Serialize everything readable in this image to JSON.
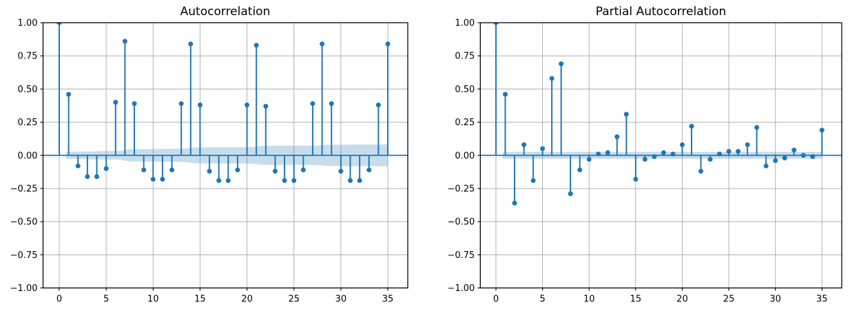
{
  "figure": {
    "background": "#ffffff",
    "accent_color": "#1f77b4",
    "band_color": "#1f77b4",
    "band_opacity": 0.25,
    "grid_color": "#b0b0b0",
    "spine_color": "#000000",
    "text_color": "#000000"
  },
  "chart_data": [
    {
      "type": "stem",
      "title": "Autocorrelation",
      "xlabel": "",
      "ylabel": "",
      "grid": true,
      "zero_line": true,
      "legend": "none",
      "xlim": [
        -1.8,
        36.8
      ],
      "ylim": [
        -1.0,
        1.0
      ],
      "xticks": [
        0,
        5,
        10,
        15,
        20,
        25,
        30,
        35
      ],
      "ytick_values": [
        1.0,
        0.75,
        0.5,
        0.25,
        0.0,
        -0.25,
        -0.5,
        -0.75,
        -1.0
      ],
      "ytick_labels": [
        "1.00",
        "0.75",
        "0.50",
        "0.25",
        "0.00",
        "−0.25",
        "−0.50",
        "−0.75",
        "−1.00"
      ],
      "x": [
        0,
        1,
        2,
        3,
        4,
        5,
        6,
        7,
        8,
        9,
        10,
        11,
        12,
        13,
        14,
        15,
        16,
        17,
        18,
        19,
        20,
        21,
        22,
        23,
        24,
        25,
        26,
        27,
        28,
        29,
        30,
        31,
        32,
        33,
        34,
        35
      ],
      "values": [
        1.0,
        0.46,
        -0.08,
        -0.16,
        -0.16,
        -0.1,
        0.4,
        0.86,
        0.39,
        -0.11,
        -0.18,
        -0.18,
        -0.11,
        0.39,
        0.84,
        0.38,
        -0.12,
        -0.19,
        -0.19,
        -0.11,
        0.38,
        0.83,
        0.37,
        -0.12,
        -0.19,
        -0.19,
        -0.11,
        0.39,
        0.84,
        0.39,
        -0.12,
        -0.19,
        -0.19,
        -0.11,
        0.38,
        0.84
      ],
      "conf_band": {
        "x": [
          0.7,
          6.5,
          7.5,
          13.5,
          14.5,
          20.5,
          21.5,
          27.5,
          28.5,
          34.5,
          35
        ],
        "halfwidth": [
          0.026,
          0.034,
          0.046,
          0.05,
          0.06,
          0.062,
          0.071,
          0.073,
          0.08,
          0.082,
          0.085
        ]
      }
    },
    {
      "type": "stem",
      "title": "Partial Autocorrelation",
      "xlabel": "",
      "ylabel": "",
      "grid": true,
      "zero_line": true,
      "legend": "none",
      "xlim": [
        -1.8,
        36.8
      ],
      "ylim": [
        -1.0,
        1.0
      ],
      "xticks": [
        0,
        5,
        10,
        15,
        20,
        25,
        30,
        35
      ],
      "ytick_values": [
        1.0,
        0.75,
        0.5,
        0.25,
        0.0,
        -0.25,
        -0.5,
        -0.75,
        -1.0
      ],
      "ytick_labels": [
        "1.00",
        "0.75",
        "0.50",
        "0.25",
        "0.00",
        "−0.25",
        "−0.50",
        "−0.75",
        "−1.00"
      ],
      "x": [
        0,
        1,
        2,
        3,
        4,
        5,
        6,
        7,
        8,
        9,
        10,
        11,
        12,
        13,
        14,
        15,
        16,
        17,
        18,
        19,
        20,
        21,
        22,
        23,
        24,
        25,
        26,
        27,
        28,
        29,
        30,
        31,
        32,
        33,
        34,
        35
      ],
      "values": [
        1.0,
        0.46,
        -0.36,
        0.08,
        -0.19,
        0.05,
        0.58,
        0.69,
        -0.29,
        -0.11,
        -0.03,
        0.01,
        0.02,
        0.14,
        0.31,
        -0.18,
        -0.03,
        -0.01,
        0.02,
        0.01,
        0.08,
        0.22,
        -0.12,
        -0.03,
        0.01,
        0.03,
        0.03,
        0.08,
        0.21,
        -0.08,
        -0.04,
        -0.02,
        0.04,
        0.0,
        -0.01,
        0.19
      ],
      "conf_band": {
        "x": [
          0.7,
          35
        ],
        "halfwidth": [
          0.026,
          0.026
        ]
      }
    }
  ]
}
